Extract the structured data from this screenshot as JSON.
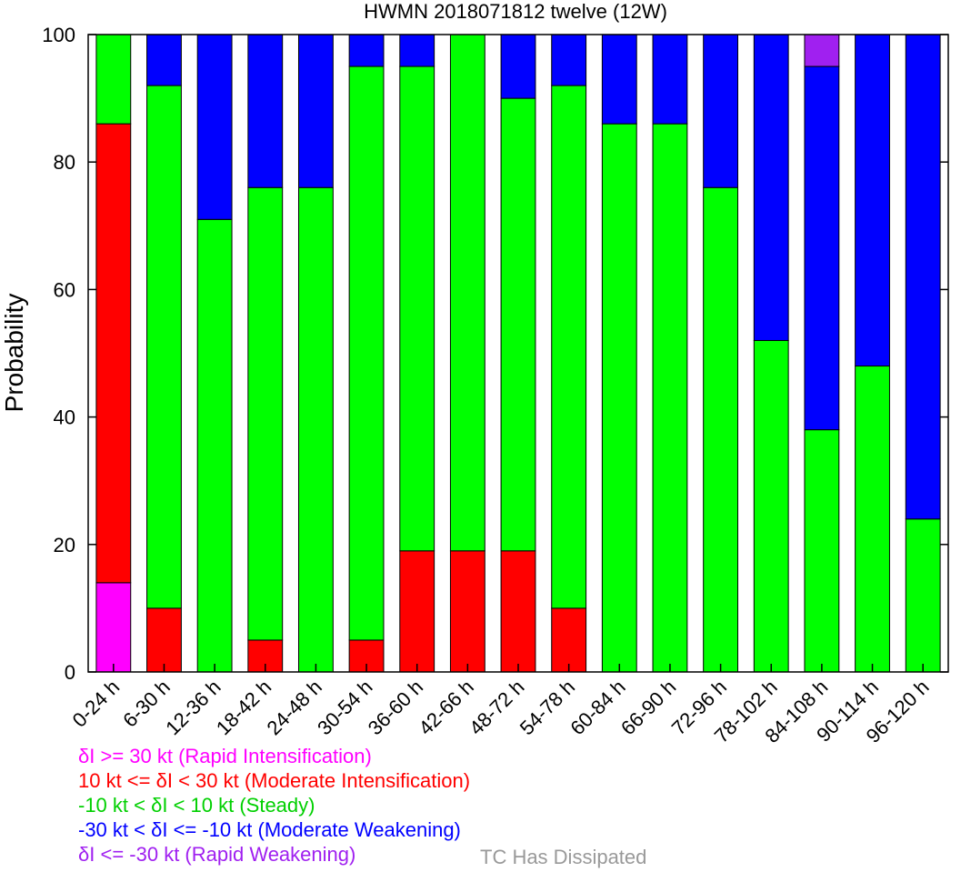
{
  "chart_data": {
    "type": "bar",
    "stacked": true,
    "title": "HWMN 2018071812 twelve (12W)",
    "xlabel": "",
    "ylabel": "Probability",
    "ylim": [
      0,
      100
    ],
    "yticks": [
      0,
      20,
      40,
      60,
      80,
      100
    ],
    "grid": false,
    "categories": [
      "0-24 h",
      "6-30 h",
      "12-36 h",
      "18-42 h",
      "24-48 h",
      "30-54 h",
      "36-60 h",
      "42-66 h",
      "48-72 h",
      "54-78 h",
      "60-84 h",
      "66-90 h",
      "72-96 h",
      "78-102 h",
      "84-108 h",
      "90-114 h",
      "96-120 h"
    ],
    "series": [
      {
        "name": "δI >= 30 kt (Rapid Intensification)",
        "color": "#ff00ff",
        "values": [
          14,
          0,
          0,
          0,
          0,
          0,
          0,
          0,
          0,
          0,
          0,
          0,
          0,
          0,
          0,
          0,
          0
        ]
      },
      {
        "name": "10 kt <= δI < 30 kt (Moderate Intensification)",
        "color": "#ff0000",
        "values": [
          72,
          10,
          0,
          5,
          0,
          5,
          19,
          19,
          19,
          10,
          0,
          0,
          0,
          0,
          0,
          0,
          0
        ]
      },
      {
        "name": "-10 kt < δI < 10 kt (Steady)",
        "color": "#00ff00",
        "values": [
          14,
          82,
          71,
          71,
          76,
          90,
          76,
          81,
          71,
          82,
          86,
          86,
          76,
          52,
          38,
          48,
          24
        ]
      },
      {
        "name": "-30 kt < δI <= -10 kt (Moderate Weakening)",
        "color": "#0000ff",
        "values": [
          0,
          8,
          29,
          24,
          24,
          5,
          5,
          0,
          10,
          8,
          14,
          14,
          24,
          48,
          57,
          52,
          76
        ]
      },
      {
        "name": "δI <= -30 kt (Rapid Weakening)",
        "color": "#a020f0",
        "values": [
          0,
          0,
          0,
          0,
          0,
          0,
          0,
          0,
          0,
          0,
          0,
          0,
          0,
          0,
          5,
          0,
          0
        ]
      }
    ]
  },
  "legend": {
    "entries": [
      {
        "text": "δI >= 30 kt (Rapid Intensification)",
        "color": "#ff00ff"
      },
      {
        "text": "10 kt <= δI < 30 kt (Moderate Intensification)",
        "color": "#ff0000"
      },
      {
        "text": "-10 kt < δI < 10 kt (Steady)",
        "color": "#00d000"
      },
      {
        "text": "-30 kt < δI <= -10 kt (Moderate Weakening)",
        "color": "#0000ff"
      },
      {
        "text": "δI <= -30 kt (Rapid Weakening)",
        "color": "#a020f0"
      }
    ],
    "dissipated_text": "TC Has Dissipated",
    "dissipated_color": "#999999"
  }
}
